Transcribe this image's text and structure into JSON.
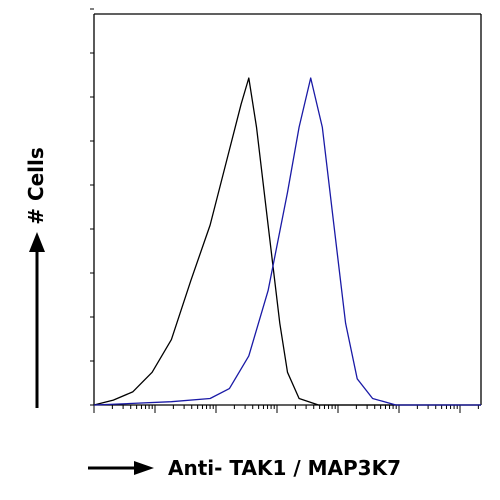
{
  "chart_data": {
    "type": "line",
    "title": "",
    "xlabel": "Anti- TAK1 / MAP3K7",
    "ylabel": "# Cells",
    "x_scale": "log",
    "x_ticks_labeled": false,
    "y_ticks_labeled": false,
    "grid": false,
    "legend": "none",
    "series": [
      {
        "color": "#000000",
        "points": [
          [
            0.0,
            0.0
          ],
          [
            0.5,
            0.015
          ],
          [
            1.0,
            0.04
          ],
          [
            1.5,
            0.1
          ],
          [
            2.0,
            0.2
          ],
          [
            2.5,
            0.38
          ],
          [
            3.0,
            0.55
          ],
          [
            3.5,
            0.78
          ],
          [
            3.8,
            0.92
          ],
          [
            4.0,
            1.0
          ],
          [
            4.2,
            0.85
          ],
          [
            4.5,
            0.55
          ],
          [
            4.8,
            0.25
          ],
          [
            5.0,
            0.1
          ],
          [
            5.3,
            0.02
          ],
          [
            5.8,
            0.0
          ],
          [
            10.0,
            0.0
          ]
        ]
      },
      {
        "color": "#1a1aa6",
        "points": [
          [
            0.0,
            0.0
          ],
          [
            1.0,
            0.005
          ],
          [
            2.0,
            0.01
          ],
          [
            3.0,
            0.02
          ],
          [
            3.5,
            0.05
          ],
          [
            4.0,
            0.15
          ],
          [
            4.5,
            0.35
          ],
          [
            5.0,
            0.65
          ],
          [
            5.3,
            0.85
          ],
          [
            5.6,
            1.0
          ],
          [
            5.9,
            0.85
          ],
          [
            6.2,
            0.55
          ],
          [
            6.5,
            0.25
          ],
          [
            6.8,
            0.08
          ],
          [
            7.2,
            0.02
          ],
          [
            7.8,
            0.0
          ],
          [
            10.0,
            0.0
          ]
        ]
      }
    ]
  }
}
